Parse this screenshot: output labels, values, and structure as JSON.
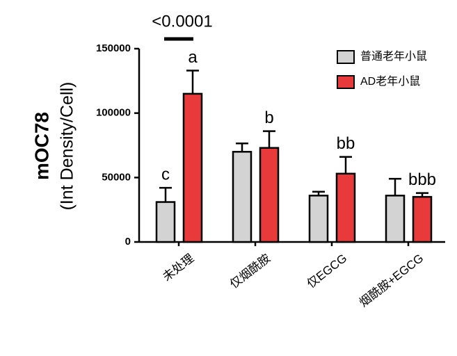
{
  "chart_data": {
    "type": "bar",
    "y_label_main": "mOC78",
    "y_label_sub": "(Int Density/Cell)",
    "significance": "<0.0001",
    "categories": [
      "未处理",
      "仅烟酰胺",
      "仅EGCG",
      "烟酰胺+EGCG"
    ],
    "series": [
      {
        "name": "普通老年小鼠",
        "color": "#d3d3d3",
        "values": [
          31000,
          70000,
          36000,
          36000
        ],
        "errors": [
          11000,
          6500,
          3000,
          13000
        ],
        "letters": [
          "c",
          null,
          null,
          null
        ]
      },
      {
        "name": "AD老年小鼠",
        "color": "#e8393b",
        "values": [
          115000,
          73000,
          53000,
          35000
        ],
        "errors": [
          18000,
          13000,
          13000,
          3000
        ],
        "letters": [
          "a",
          "b",
          "bb",
          "bbb"
        ]
      }
    ],
    "ylim": [
      0,
      150000
    ],
    "yticks": [
      0,
      50000,
      100000,
      150000
    ],
    "legend": "upper right"
  }
}
